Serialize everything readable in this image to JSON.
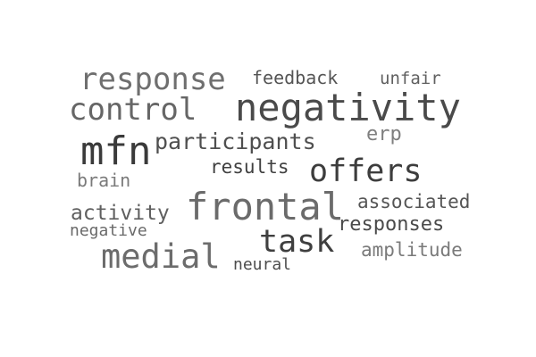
{
  "word_cloud": {
    "words": [
      {
        "text": "response",
        "color": "#6f6f6f"
      },
      {
        "text": "feedback",
        "color": "#555555"
      },
      {
        "text": "unfair",
        "color": "#606060"
      },
      {
        "text": "control",
        "color": "#666666"
      },
      {
        "text": "negativity",
        "color": "#4a4a4a"
      },
      {
        "text": "erp",
        "color": "#7f7f7f"
      },
      {
        "text": "mfn",
        "color": "#3a3a3a"
      },
      {
        "text": "participants",
        "color": "#4f4f4f"
      },
      {
        "text": "results",
        "color": "#404040"
      },
      {
        "text": "offers",
        "color": "#3d3d3d"
      },
      {
        "text": "brain",
        "color": "#7a7a7a"
      },
      {
        "text": "frontal",
        "color": "#6b6b6b"
      },
      {
        "text": "associated",
        "color": "#555555"
      },
      {
        "text": "activity",
        "color": "#5f5f5f"
      },
      {
        "text": "responses",
        "color": "#4a4a4a"
      },
      {
        "text": "negative",
        "color": "#6a6a6a"
      },
      {
        "text": "task",
        "color": "#3f3f3f"
      },
      {
        "text": "amplitude",
        "color": "#7a7a7a"
      },
      {
        "text": "medial",
        "color": "#6c6c6c"
      },
      {
        "text": "neural",
        "color": "#4d4d4d"
      }
    ]
  }
}
